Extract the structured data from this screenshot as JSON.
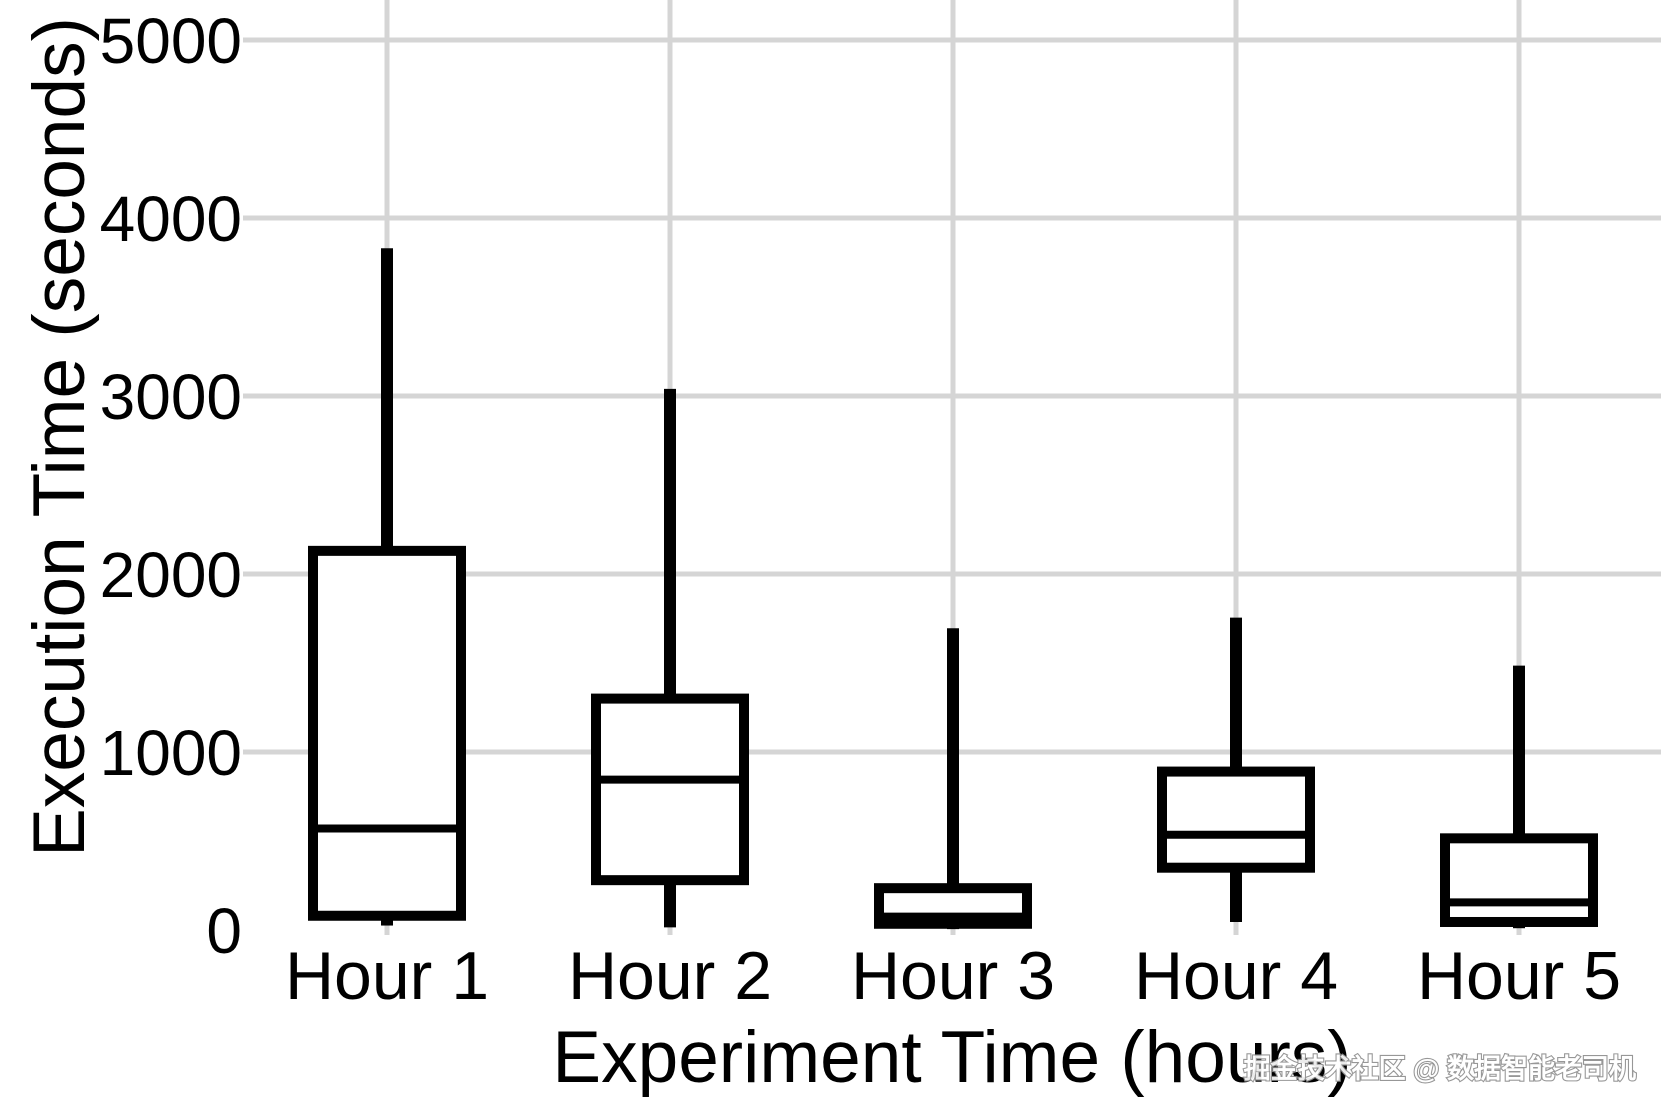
{
  "chart_data": {
    "type": "box",
    "title": "",
    "xlabel": "Experiment Time (hours)",
    "ylabel": "Execution Time (seconds)",
    "categories": [
      "Hour 1",
      "Hour 2",
      "Hour 3",
      "Hour 4",
      "Hour 5"
    ],
    "series": [
      {
        "name": "Hour 1",
        "min": 25,
        "q1": 80,
        "median": 570,
        "q3": 2130,
        "max": 3830
      },
      {
        "name": "Hour 2",
        "min": 15,
        "q1": 280,
        "median": 845,
        "q3": 1300,
        "max": 3040
      },
      {
        "name": "Hour 3",
        "min": 5,
        "q1": 35,
        "median": 75,
        "q3": 235,
        "max": 1695
      },
      {
        "name": "Hour 4",
        "min": 45,
        "q1": 350,
        "median": 535,
        "q3": 890,
        "max": 1755
      },
      {
        "name": "Hour 5",
        "min": 10,
        "q1": 45,
        "median": 155,
        "q3": 515,
        "max": 1485
      }
    ],
    "yticks": [
      0,
      1000,
      2000,
      3000,
      4000,
      5000
    ],
    "ytick_labels": [
      "0",
      "1000",
      "2000",
      "3000",
      "4000",
      "5000"
    ],
    "ylim": [
      -60,
      5235
    ],
    "grid": "horizontal major lines at yticks, vertical line at each category center",
    "legend": "none",
    "colors": {
      "box_stroke": "#000000",
      "box_fill": "#ffffff",
      "gridline": "#d5d5d5",
      "background": "#ffffff",
      "text": "#000000"
    }
  },
  "watermark": {
    "text": "掘金技术社区 @ 数据智能老司机",
    "color": "#ffffff",
    "outline": "#8f8f8f"
  }
}
